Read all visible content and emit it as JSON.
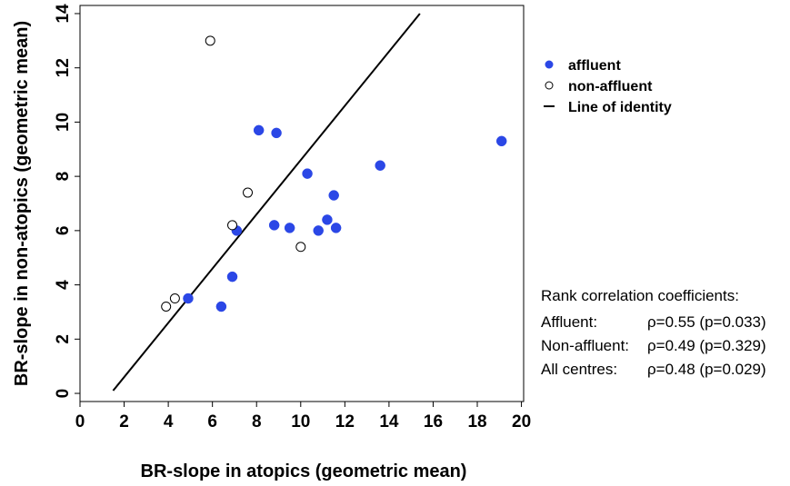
{
  "chart_data": {
    "type": "scatter",
    "title": "",
    "xlabel": "BR-slope in atopics (geometric mean)",
    "ylabel": "BR-slope in non-atopics (geometric mean)",
    "xlim": [
      0,
      20.1
    ],
    "ylim": [
      -0.3,
      14.3
    ],
    "x_ticks": [
      0,
      2,
      4,
      6,
      8,
      10,
      12,
      14,
      16,
      18,
      20
    ],
    "y_ticks": [
      0,
      2,
      4,
      6,
      8,
      10,
      12,
      14
    ],
    "grid": false,
    "legend_position": "top-right, outside plot",
    "series": [
      {
        "name": "affluent",
        "marker": "filled-circle",
        "color": "#2b47e6",
        "points": [
          {
            "x": 4.9,
            "y": 3.5
          },
          {
            "x": 6.4,
            "y": 3.2
          },
          {
            "x": 6.9,
            "y": 4.3
          },
          {
            "x": 7.1,
            "y": 6.0
          },
          {
            "x": 8.1,
            "y": 9.7
          },
          {
            "x": 8.8,
            "y": 6.2
          },
          {
            "x": 8.9,
            "y": 9.6
          },
          {
            "x": 9.5,
            "y": 6.1
          },
          {
            "x": 10.3,
            "y": 8.1
          },
          {
            "x": 10.8,
            "y": 6.0
          },
          {
            "x": 11.2,
            "y": 6.4
          },
          {
            "x": 11.5,
            "y": 7.3
          },
          {
            "x": 11.6,
            "y": 6.1
          },
          {
            "x": 13.6,
            "y": 8.4
          },
          {
            "x": 19.1,
            "y": 9.3
          }
        ]
      },
      {
        "name": "non-affluent",
        "marker": "open-circle",
        "color": "#000000",
        "points": [
          {
            "x": 3.9,
            "y": 3.2
          },
          {
            "x": 4.3,
            "y": 3.5
          },
          {
            "x": 5.9,
            "y": 13.0
          },
          {
            "x": 6.9,
            "y": 6.2
          },
          {
            "x": 7.6,
            "y": 7.4
          },
          {
            "x": 10.0,
            "y": 5.4
          }
        ]
      }
    ],
    "reference_line": {
      "name": "Line of identity",
      "points": [
        {
          "x": 1.5,
          "y": 0.1
        },
        {
          "x": 15.4,
          "y": 14.0
        }
      ]
    },
    "legend": [
      {
        "label": "affluent",
        "symbol": "filled-circle",
        "color": "#2b47e6"
      },
      {
        "label": "non-affluent",
        "symbol": "open-circle",
        "color": "#000000"
      },
      {
        "label": "Line of identity",
        "symbol": "line",
        "color": "#000000"
      }
    ],
    "annotation": {
      "heading": "Rank correlation coefficients:",
      "rows": [
        {
          "label": "Affluent:",
          "value": "ρ=0.55 (p=0.033)"
        },
        {
          "label": "Non-affluent:",
          "value": "ρ=0.49 (p=0.329)"
        },
        {
          "label": "All centres:",
          "value": "ρ=0.48 (p=0.029)"
        }
      ]
    }
  }
}
